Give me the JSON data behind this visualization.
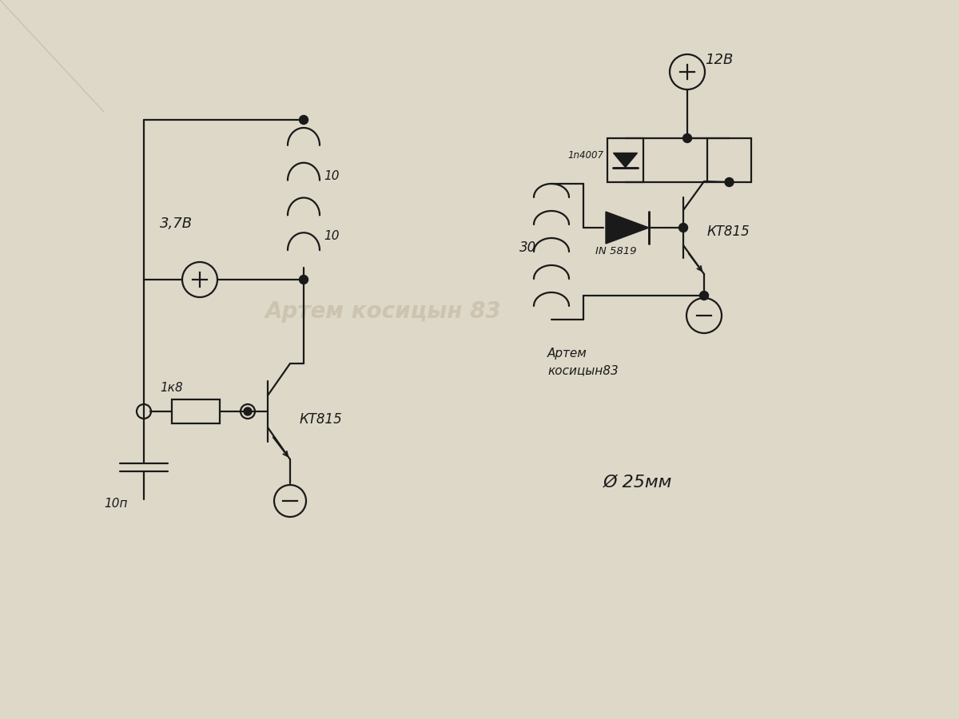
{
  "bg_color": "#ddd8c8",
  "line_color": "#1a1a1a",
  "line_width": 1.6,
  "watermark_text": "Артем косицын 83",
  "watermark_color": "#bfb49a",
  "watermark_alpha": 0.55,
  "label_37V": "3,7В",
  "label_10a": "10",
  "label_10b": "10",
  "label_1k8": "1к8",
  "label_10n": "10п",
  "label_kt815_1": "КТ815",
  "label_12V": "12В",
  "label_1n4007": "1n4007",
  "label_in5819": "IN 5819",
  "label_30": "30",
  "label_kt815_2": "КТ815",
  "label_author": "Артем\nкосицын83",
  "label_phi25mm": "Ø 25мм"
}
